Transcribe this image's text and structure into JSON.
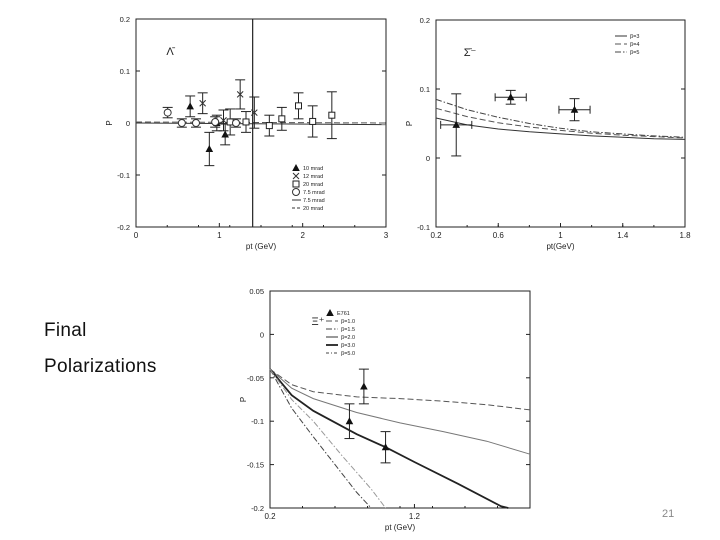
{
  "slide": {
    "caption_line1": "Final",
    "caption_line2": "Polarizations",
    "page_number": "21"
  },
  "chart_data": [
    {
      "type": "scatter",
      "panel_label": "Λ̄",
      "xlabel": "pt (GeV)",
      "ylabel": "P",
      "xlim": [
        0,
        3
      ],
      "ylim": [
        -0.2,
        0.2
      ],
      "xticks": [
        "0",
        "1",
        "2",
        "3"
      ],
      "yticks": [
        "0.2",
        "0.1",
        "0",
        "-0.1",
        "-0.2"
      ],
      "vline_x": 1.4,
      "legend": {
        "placement": "bottom-right",
        "entries": [
          {
            "marker": "▲",
            "label": "10 mrad"
          },
          {
            "marker": "×",
            "label": "12 mrad"
          },
          {
            "marker": "□",
            "label": "20 mrad"
          },
          {
            "marker": "○",
            "label": "7.5 mrad"
          },
          {
            "marker": "—",
            "label": "7.5 mrad"
          },
          {
            "marker": "--",
            "label": "20 mrad"
          }
        ]
      },
      "series": [
        {
          "marker": "triangle",
          "points": [
            {
              "x": 0.65,
              "y": 0.032,
              "err": 0.02
            },
            {
              "x": 0.88,
              "y": -0.05,
              "err": 0.032
            },
            {
              "x": 1.07,
              "y": -0.022,
              "err": 0.02
            },
            {
              "x": 0.97,
              "y": 0.0,
              "err": 0.015
            }
          ]
        },
        {
          "marker": "cross",
          "points": [
            {
              "x": 0.8,
              "y": 0.038,
              "err": 0.02
            },
            {
              "x": 1.05,
              "y": 0.005,
              "err": 0.02
            },
            {
              "x": 1.25,
              "y": 0.055,
              "err": 0.028
            },
            {
              "x": 1.42,
              "y": 0.02,
              "err": 0.03
            }
          ]
        },
        {
          "marker": "square",
          "points": [
            {
              "x": 1.13,
              "y": 0.002,
              "err": 0.025
            },
            {
              "x": 1.32,
              "y": 0.002,
              "err": 0.02
            },
            {
              "x": 1.6,
              "y": -0.005,
              "err": 0.02
            },
            {
              "x": 1.75,
              "y": 0.008,
              "err": 0.022
            },
            {
              "x": 1.95,
              "y": 0.033,
              "err": 0.025
            },
            {
              "x": 2.12,
              "y": 0.003,
              "err": 0.03
            },
            {
              "x": 2.35,
              "y": 0.015,
              "err": 0.045
            }
          ]
        },
        {
          "marker": "circle",
          "points": [
            {
              "x": 0.38,
              "y": 0.02,
              "err": 0.01
            },
            {
              "x": 0.55,
              "y": 0.0,
              "err": 0.008
            },
            {
              "x": 0.72,
              "y": 0.0,
              "err": 0.008
            },
            {
              "x": 0.95,
              "y": 0.002,
              "err": 0.01
            },
            {
              "x": 1.2,
              "y": 0.0,
              "err": 0.008
            }
          ]
        }
      ],
      "curves": [
        {
          "style": "solid",
          "points": [
            [
              0,
              0.0
            ],
            [
              3,
              -0.003
            ]
          ]
        },
        {
          "style": "dashed",
          "points": [
            [
              0,
              0.002
            ],
            [
              3,
              0.0
            ]
          ]
        }
      ]
    },
    {
      "type": "scatter",
      "panel_label": "Σ̄⁻",
      "xlabel": "pt(GeV)",
      "ylabel": "P",
      "xlim": [
        0.2,
        1.8
      ],
      "ylim": [
        -0.1,
        0.2
      ],
      "xticks": [
        "0.2",
        "0.6",
        "1",
        "1.4",
        "1.8"
      ],
      "yticks": [
        "0.2",
        "0.1",
        "0",
        "-0.1"
      ],
      "legend": {
        "placement": "top-right",
        "entries": [
          {
            "style": "solid",
            "label": "β=3"
          },
          {
            "style": "dashed",
            "label": "β=4"
          },
          {
            "style": "dashdot",
            "label": "β=5"
          }
        ]
      },
      "points": [
        {
          "x": 0.33,
          "y": 0.048,
          "yerr": 0.045,
          "xerr": 0.1
        },
        {
          "x": 0.68,
          "y": 0.088,
          "yerr": 0.01,
          "xerr": 0.1
        },
        {
          "x": 1.09,
          "y": 0.07,
          "yerr": 0.016,
          "xerr": 0.1
        }
      ],
      "curves": [
        {
          "style": "solid",
          "points": [
            [
              0.2,
              0.058
            ],
            [
              0.4,
              0.048
            ],
            [
              0.6,
              0.042
            ],
            [
              0.8,
              0.038
            ],
            [
              1.0,
              0.035
            ],
            [
              1.2,
              0.032
            ],
            [
              1.4,
              0.03
            ],
            [
              1.6,
              0.028
            ],
            [
              1.8,
              0.027
            ]
          ]
        },
        {
          "style": "dashed",
          "points": [
            [
              0.2,
              0.072
            ],
            [
              0.4,
              0.06
            ],
            [
              0.6,
              0.051
            ],
            [
              0.8,
              0.045
            ],
            [
              1.0,
              0.04
            ],
            [
              1.2,
              0.036
            ],
            [
              1.4,
              0.033
            ],
            [
              1.6,
              0.031
            ],
            [
              1.8,
              0.029
            ]
          ]
        },
        {
          "style": "dashdot",
          "points": [
            [
              0.2,
              0.085
            ],
            [
              0.4,
              0.07
            ],
            [
              0.6,
              0.059
            ],
            [
              0.8,
              0.05
            ],
            [
              1.0,
              0.043
            ],
            [
              1.2,
              0.038
            ],
            [
              1.4,
              0.035
            ],
            [
              1.6,
              0.032
            ],
            [
              1.8,
              0.03
            ]
          ]
        }
      ]
    },
    {
      "type": "scatter",
      "panel_label": "Ξ⁺",
      "xlabel": "pt (GeV)",
      "ylabel": "P",
      "xlim": [
        0.2,
        2.0
      ],
      "ylim": [
        -0.2,
        0.05
      ],
      "xticks": [
        "0.2",
        "1.2"
      ],
      "yticks": [
        "0.05",
        "0",
        "-0.05",
        "-0.1",
        "-0.15",
        "-0.2"
      ],
      "legend": {
        "placement": "top-left",
        "entries": [
          {
            "marker": "▲",
            "label": "E761"
          },
          {
            "style": "dashed",
            "label": "β=1.0"
          },
          {
            "style": "dashdot",
            "label": "β=1.5"
          },
          {
            "style": "solid",
            "label": "β=2.0"
          },
          {
            "style": "thick",
            "label": "β=3.0"
          },
          {
            "style": "dashdot2",
            "label": "β=5.0"
          }
        ]
      },
      "points": [
        {
          "x": 0.75,
          "y": -0.1,
          "err": 0.02
        },
        {
          "x": 0.85,
          "y": -0.06,
          "err": 0.02
        },
        {
          "x": 1.0,
          "y": -0.13,
          "err": 0.018
        }
      ],
      "curves": [
        {
          "style": "dashed",
          "points": [
            [
              0.2,
              -0.04
            ],
            [
              0.35,
              -0.058
            ],
            [
              0.5,
              -0.066
            ],
            [
              0.8,
              -0.072
            ],
            [
              1.1,
              -0.074
            ],
            [
              1.4,
              -0.077
            ],
            [
              1.7,
              -0.081
            ],
            [
              2.0,
              -0.087
            ]
          ]
        },
        {
          "style": "solid-gray",
          "points": [
            [
              0.2,
              -0.04
            ],
            [
              0.35,
              -0.062
            ],
            [
              0.5,
              -0.074
            ],
            [
              0.8,
              -0.09
            ],
            [
              1.1,
              -0.102
            ],
            [
              1.4,
              -0.112
            ],
            [
              1.7,
              -0.123
            ],
            [
              2.0,
              -0.138
            ]
          ]
        },
        {
          "style": "thick",
          "points": [
            [
              0.2,
              -0.04
            ],
            [
              0.35,
              -0.07
            ],
            [
              0.5,
              -0.088
            ],
            [
              0.8,
              -0.115
            ],
            [
              1.0,
              -0.13
            ],
            [
              1.2,
              -0.147
            ],
            [
              1.5,
              -0.172
            ],
            [
              1.8,
              -0.198
            ],
            [
              1.85,
              -0.2
            ]
          ]
        },
        {
          "style": "dashdot",
          "points": [
            [
              0.2,
              -0.04
            ],
            [
              0.35,
              -0.085
            ],
            [
              0.5,
              -0.118
            ],
            [
              0.65,
              -0.15
            ],
            [
              0.8,
              -0.182
            ],
            [
              0.9,
              -0.2
            ]
          ]
        },
        {
          "style": "dashdot-gray",
          "points": [
            [
              0.2,
              -0.04
            ],
            [
              0.35,
              -0.075
            ],
            [
              0.5,
              -0.1
            ],
            [
              0.7,
              -0.14
            ],
            [
              0.9,
              -0.178
            ],
            [
              1.0,
              -0.2
            ]
          ]
        }
      ]
    }
  ]
}
